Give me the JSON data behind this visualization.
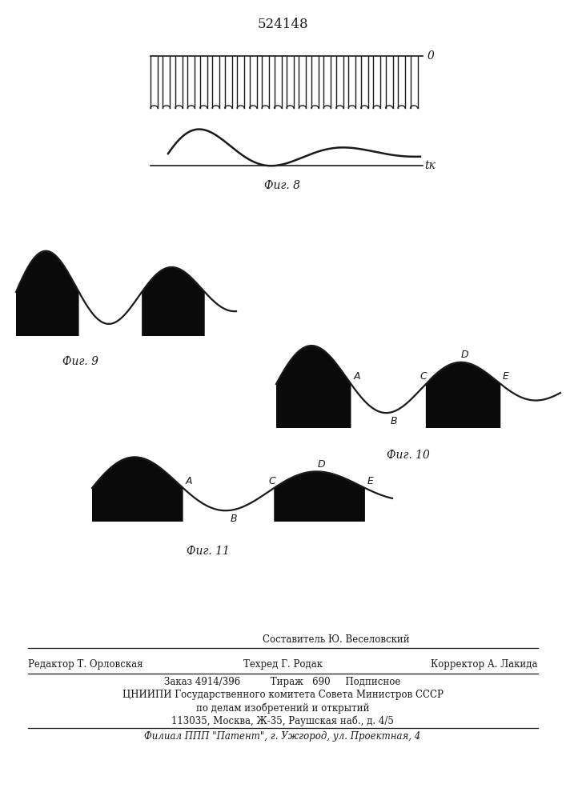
{
  "title": "524148",
  "title_fontsize": 12,
  "bg_color": "#ffffff",
  "fig8_label": "Фиг. 8",
  "fig9_label": "Фиг. 9",
  "fig10_label": "Фиг. 10",
  "fig11_label": "Фиг. 11",
  "label_0": "0",
  "label_tk": "tк",
  "footer_line1_top": "Составитель Ю. Веселовский",
  "footer_line1_left": "Редактор Т. Орловская",
  "footer_line1_center": "Техред Г. Родак",
  "footer_line1_right": "Корректор А. Лакида",
  "footer_line2": "Заказ 4914/396          Тираж   690     Подписное",
  "footer_line3": "ЦНИИПИ Государственного комитета Совета Министров СССР",
  "footer_line4": "по делам изобретений и открытий",
  "footer_line5": "113035, Москва, Ж-35, Раушская наб., д. 4/5",
  "footer_line6": "Филиал ППП \"Патент\", г. Ужгород, ул. Проектная, 4",
  "text_color": "#1a1a1a",
  "line_color": "#1a1a1a",
  "fill_color": "#0a0a0a"
}
